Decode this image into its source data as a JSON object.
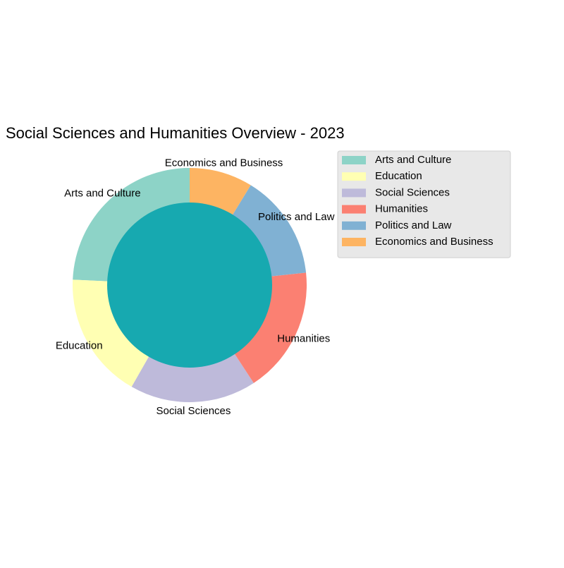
{
  "chart_data": {
    "type": "pie",
    "title": "Social Sciences and Humanities Overview - 2023",
    "categories": [
      "Arts and Culture",
      "Education",
      "Social Sciences",
      "Humanities",
      "Politics and Law",
      "Economics and Business"
    ],
    "values": [
      25,
      18,
      18,
      18,
      15,
      9
    ],
    "colors": [
      "#8dd3c7",
      "#ffffb3",
      "#bebada",
      "#fb8072",
      "#80b1d3",
      "#fdb462"
    ],
    "center_color": "#17a9b0",
    "start_angle_deg": 90,
    "direction": "counterclockwise",
    "donut": true,
    "legend_position": "upper-right",
    "legend_background": "#e8e8e8"
  }
}
